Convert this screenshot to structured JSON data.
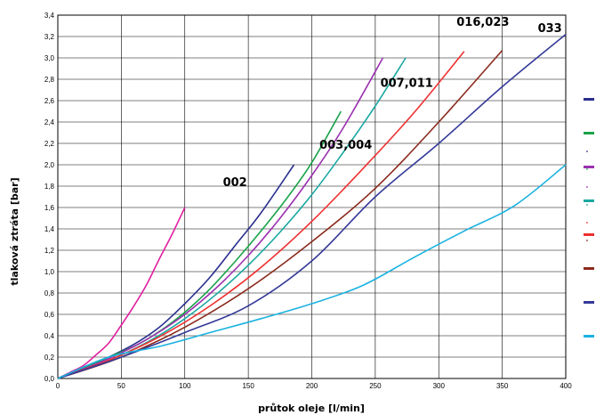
{
  "chart_data": {
    "type": "line",
    "title": "",
    "xlabel": "průtok oleje [l/min]",
    "ylabel": "tlaková ztráta [bar]",
    "xlim": [
      0,
      400
    ],
    "ylim": [
      0,
      3.4
    ],
    "xticks": [
      "0",
      "50",
      "100",
      "150",
      "200",
      "250",
      "300",
      "350",
      "400"
    ],
    "yticks": [
      "0,0",
      "0,2",
      "0,4",
      "0,6",
      "0,8",
      "1,0",
      "1,2",
      "1,4",
      "1,6",
      "1,8",
      "2,0",
      "2,2",
      "2,4",
      "2,6",
      "2,8",
      "3,0",
      "3,2",
      "3,4"
    ],
    "grid": true,
    "legend": "right",
    "series": [
      {
        "color": "#e020a0",
        "x": [
          0,
          10,
          20,
          30,
          40,
          50,
          60,
          70,
          80,
          90,
          100
        ],
        "y": [
          0,
          0.06,
          0.12,
          0.22,
          0.33,
          0.5,
          0.68,
          0.88,
          1.12,
          1.35,
          1.6
        ]
      },
      {
        "color": "#2a2f8e",
        "x": [
          0,
          20,
          40,
          60,
          80,
          100,
          120,
          140,
          160,
          186
        ],
        "y": [
          0,
          0.1,
          0.2,
          0.32,
          0.48,
          0.7,
          0.95,
          1.25,
          1.55,
          2.0
        ]
      },
      {
        "color": "#1aa34a",
        "x": [
          0,
          20,
          40,
          60,
          80,
          100,
          120,
          140,
          160,
          180,
          200,
          223
        ],
        "y": [
          0,
          0.1,
          0.2,
          0.3,
          0.44,
          0.62,
          0.84,
          1.1,
          1.38,
          1.68,
          2.02,
          2.5
        ]
      },
      {
        "color": "#9b30b0",
        "x": [
          0,
          25,
          50,
          75,
          100,
          125,
          150,
          175,
          200,
          225,
          256
        ],
        "y": [
          0,
          0.11,
          0.24,
          0.4,
          0.6,
          0.85,
          1.15,
          1.5,
          1.9,
          2.35,
          3.0
        ]
      },
      {
        "color": "#1aa8a0",
        "x": [
          0,
          25,
          50,
          75,
          100,
          125,
          150,
          175,
          200,
          225,
          250,
          274
        ],
        "y": [
          0,
          0.1,
          0.22,
          0.37,
          0.56,
          0.79,
          1.06,
          1.37,
          1.72,
          2.12,
          2.55,
          3.0
        ]
      },
      {
        "color": "#ee3030",
        "x": [
          0,
          40,
          80,
          120,
          160,
          200,
          240,
          280,
          320
        ],
        "y": [
          0,
          0.17,
          0.39,
          0.68,
          1.04,
          1.47,
          1.96,
          2.48,
          3.06
        ]
      },
      {
        "color": "#8b2a1e",
        "x": [
          0,
          50,
          100,
          150,
          200,
          250,
          300,
          350
        ],
        "y": [
          0,
          0.2,
          0.48,
          0.84,
          1.28,
          1.78,
          2.4,
          3.07
        ]
      },
      {
        "color": "#343a98",
        "x": [
          0,
          50,
          100,
          150,
          200,
          250,
          300,
          350,
          400
        ],
        "y": [
          0,
          0.2,
          0.43,
          0.68,
          1.1,
          1.7,
          2.2,
          2.73,
          3.22
        ]
      },
      {
        "color": "#1ab2e0",
        "x": [
          0,
          40,
          80,
          120,
          160,
          200,
          240,
          280,
          320,
          360,
          400
        ],
        "y": [
          0,
          0.2,
          0.3,
          0.43,
          0.56,
          0.7,
          0.87,
          1.13,
          1.38,
          1.62,
          2.0
        ]
      }
    ],
    "annotations": [
      {
        "text": "002",
        "x": 130,
        "y": 1.8
      },
      {
        "text": "003,004",
        "x": 206,
        "y": 2.15
      },
      {
        "text": "007,011",
        "x": 254,
        "y": 2.73
      },
      {
        "text": "016,023",
        "x": 314,
        "y": 3.3
      },
      {
        "text": "033",
        "x": 378,
        "y": 3.24
      }
    ]
  }
}
